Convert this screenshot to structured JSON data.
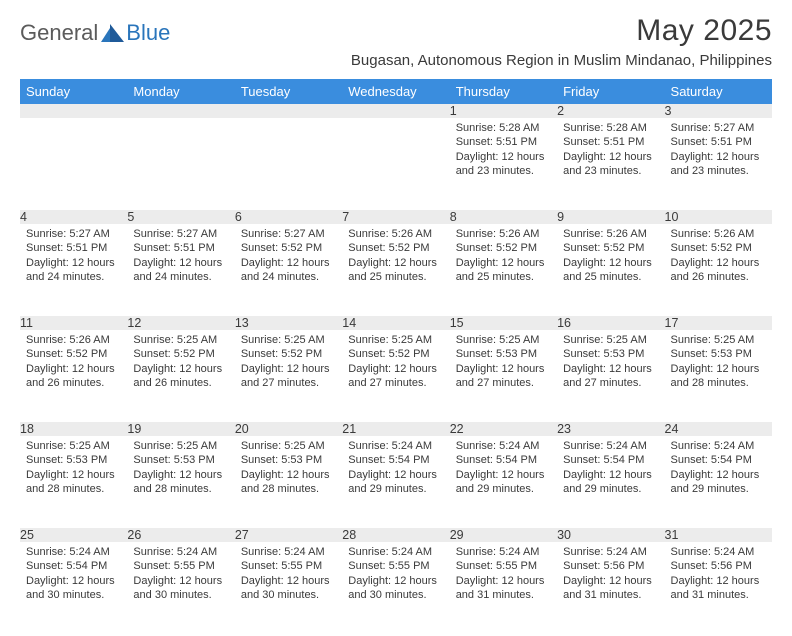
{
  "logo": {
    "word1": "General",
    "word2": "Blue"
  },
  "title": "May 2025",
  "subtitle": "Bugasan, Autonomous Region in Muslim Mindanao, Philippines",
  "weekdays": [
    "Sunday",
    "Monday",
    "Tuesday",
    "Wednesday",
    "Thursday",
    "Friday",
    "Saturday"
  ],
  "colors": {
    "header_bg": "#3a8dde",
    "header_text": "#ffffff",
    "daynum_bg": "#ececec",
    "rule": "#2a75bb",
    "page_bg": "#ffffff",
    "text": "#3a3a3a",
    "logo_gray": "#5b5b5b",
    "logo_blue": "#2a75bb",
    "logo_dark": "#1f5a99"
  },
  "weeks": [
    [
      null,
      null,
      null,
      null,
      {
        "n": "1",
        "r": "5:28 AM",
        "s": "5:51 PM",
        "d": "12 hours and 23 minutes."
      },
      {
        "n": "2",
        "r": "5:28 AM",
        "s": "5:51 PM",
        "d": "12 hours and 23 minutes."
      },
      {
        "n": "3",
        "r": "5:27 AM",
        "s": "5:51 PM",
        "d": "12 hours and 23 minutes."
      }
    ],
    [
      {
        "n": "4",
        "r": "5:27 AM",
        "s": "5:51 PM",
        "d": "12 hours and 24 minutes."
      },
      {
        "n": "5",
        "r": "5:27 AM",
        "s": "5:51 PM",
        "d": "12 hours and 24 minutes."
      },
      {
        "n": "6",
        "r": "5:27 AM",
        "s": "5:52 PM",
        "d": "12 hours and 24 minutes."
      },
      {
        "n": "7",
        "r": "5:26 AM",
        "s": "5:52 PM",
        "d": "12 hours and 25 minutes."
      },
      {
        "n": "8",
        "r": "5:26 AM",
        "s": "5:52 PM",
        "d": "12 hours and 25 minutes."
      },
      {
        "n": "9",
        "r": "5:26 AM",
        "s": "5:52 PM",
        "d": "12 hours and 25 minutes."
      },
      {
        "n": "10",
        "r": "5:26 AM",
        "s": "5:52 PM",
        "d": "12 hours and 26 minutes."
      }
    ],
    [
      {
        "n": "11",
        "r": "5:26 AM",
        "s": "5:52 PM",
        "d": "12 hours and 26 minutes."
      },
      {
        "n": "12",
        "r": "5:25 AM",
        "s": "5:52 PM",
        "d": "12 hours and 26 minutes."
      },
      {
        "n": "13",
        "r": "5:25 AM",
        "s": "5:52 PM",
        "d": "12 hours and 27 minutes."
      },
      {
        "n": "14",
        "r": "5:25 AM",
        "s": "5:52 PM",
        "d": "12 hours and 27 minutes."
      },
      {
        "n": "15",
        "r": "5:25 AM",
        "s": "5:53 PM",
        "d": "12 hours and 27 minutes."
      },
      {
        "n": "16",
        "r": "5:25 AM",
        "s": "5:53 PM",
        "d": "12 hours and 27 minutes."
      },
      {
        "n": "17",
        "r": "5:25 AM",
        "s": "5:53 PM",
        "d": "12 hours and 28 minutes."
      }
    ],
    [
      {
        "n": "18",
        "r": "5:25 AM",
        "s": "5:53 PM",
        "d": "12 hours and 28 minutes."
      },
      {
        "n": "19",
        "r": "5:25 AM",
        "s": "5:53 PM",
        "d": "12 hours and 28 minutes."
      },
      {
        "n": "20",
        "r": "5:25 AM",
        "s": "5:53 PM",
        "d": "12 hours and 28 minutes."
      },
      {
        "n": "21",
        "r": "5:24 AM",
        "s": "5:54 PM",
        "d": "12 hours and 29 minutes."
      },
      {
        "n": "22",
        "r": "5:24 AM",
        "s": "5:54 PM",
        "d": "12 hours and 29 minutes."
      },
      {
        "n": "23",
        "r": "5:24 AM",
        "s": "5:54 PM",
        "d": "12 hours and 29 minutes."
      },
      {
        "n": "24",
        "r": "5:24 AM",
        "s": "5:54 PM",
        "d": "12 hours and 29 minutes."
      }
    ],
    [
      {
        "n": "25",
        "r": "5:24 AM",
        "s": "5:54 PM",
        "d": "12 hours and 30 minutes."
      },
      {
        "n": "26",
        "r": "5:24 AM",
        "s": "5:55 PM",
        "d": "12 hours and 30 minutes."
      },
      {
        "n": "27",
        "r": "5:24 AM",
        "s": "5:55 PM",
        "d": "12 hours and 30 minutes."
      },
      {
        "n": "28",
        "r": "5:24 AM",
        "s": "5:55 PM",
        "d": "12 hours and 30 minutes."
      },
      {
        "n": "29",
        "r": "5:24 AM",
        "s": "5:55 PM",
        "d": "12 hours and 31 minutes."
      },
      {
        "n": "30",
        "r": "5:24 AM",
        "s": "5:56 PM",
        "d": "12 hours and 31 minutes."
      },
      {
        "n": "31",
        "r": "5:24 AM",
        "s": "5:56 PM",
        "d": "12 hours and 31 minutes."
      }
    ]
  ]
}
